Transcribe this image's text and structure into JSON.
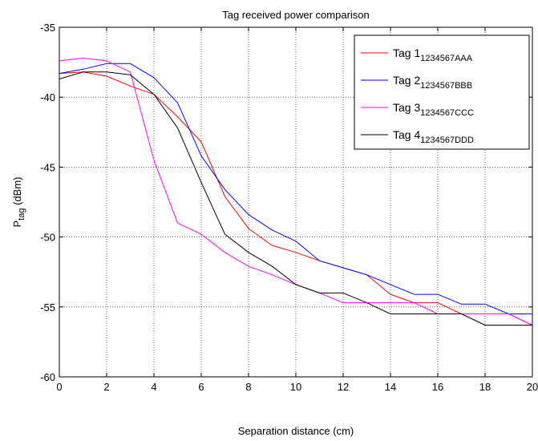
{
  "chart_data": {
    "type": "line",
    "title": "Tag received power comparison",
    "xlabel": "Separation distance (cm)",
    "ylabel": {
      "main": "P",
      "sub": "tag",
      "unit": " (dBm)"
    },
    "xlim": [
      0,
      20
    ],
    "ylim": [
      -60,
      -35
    ],
    "xticks": [
      0,
      2,
      4,
      6,
      8,
      10,
      12,
      14,
      16,
      18,
      20
    ],
    "yticks": [
      -60,
      -55,
      -50,
      -45,
      -40,
      -35
    ],
    "grid": true,
    "legend_position": "top-right",
    "x": [
      0,
      1,
      2,
      3,
      4,
      5,
      6,
      7,
      8,
      9,
      10,
      11,
      12,
      13,
      14,
      15,
      16,
      17,
      18,
      19,
      20
    ],
    "series": [
      {
        "name": "Tag 1",
        "subscript": "1234567AAA",
        "color": "#ff0000",
        "values": [
          -38.3,
          -38.2,
          -38.5,
          -39.2,
          -39.8,
          -41.4,
          -43.2,
          -47.1,
          -49.4,
          -50.6,
          -51.1,
          -51.7,
          -52.2,
          -52.7,
          -54.1,
          -54.7,
          -54.7,
          -55.5,
          -55.5,
          -55.5,
          -56.3
        ]
      },
      {
        "name": "Tag 2",
        "subscript": "1234567BBB",
        "color": "#0000ff",
        "values": [
          -38.3,
          -38.0,
          -37.6,
          -37.6,
          -38.6,
          -40.4,
          -44.2,
          -46.6,
          -48.4,
          -49.5,
          -50.3,
          -51.7,
          -52.2,
          -52.7,
          -53.4,
          -54.1,
          -54.1,
          -54.8,
          -54.8,
          -55.5,
          -55.5
        ]
      },
      {
        "name": "Tag 3",
        "subscript": "1234567CCC",
        "color": "#ff00ff",
        "values": [
          -37.4,
          -37.2,
          -37.4,
          -38.2,
          -44.5,
          -49.0,
          -49.8,
          -51.1,
          -52.1,
          -52.7,
          -53.4,
          -54.0,
          -54.7,
          -54.7,
          -54.7,
          -54.7,
          -55.5,
          -55.5,
          -55.5,
          -55.5,
          -56.3
        ]
      },
      {
        "name": "Tag 4",
        "subscript": "1234567DDD",
        "color": "#000000",
        "values": [
          -38.7,
          -38.2,
          -38.2,
          -38.4,
          -39.8,
          -42.2,
          -46.1,
          -49.8,
          -51.1,
          -52.1,
          -53.4,
          -54.0,
          -54.0,
          -54.7,
          -55.5,
          -55.5,
          -55.5,
          -55.5,
          -56.3,
          -56.3,
          -56.3
        ]
      }
    ]
  }
}
